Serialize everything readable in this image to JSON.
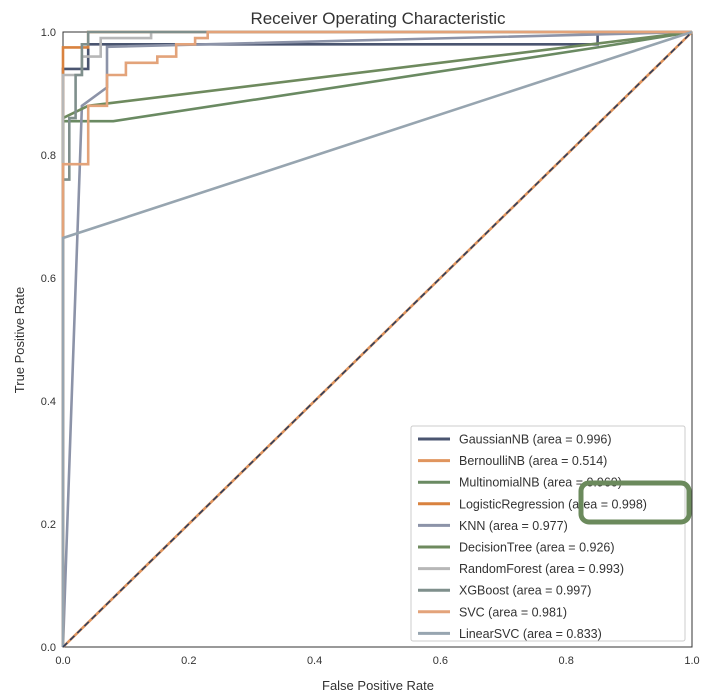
{
  "chart_data": {
    "type": "line",
    "title": "Receiver Operating Characteristic",
    "xlabel": "False Positive Rate",
    "ylabel": "True Positive Rate",
    "xlim": [
      0,
      1
    ],
    "ylim": [
      0,
      1
    ],
    "xticks": [
      "0.0",
      "0.2",
      "0.4",
      "0.6",
      "0.8",
      "1.0"
    ],
    "yticks": [
      "0.0",
      "0.2",
      "0.4",
      "0.6",
      "0.8",
      "1.0"
    ],
    "grid": false,
    "legend_position": "lower-right",
    "diagonal": {
      "x": [
        0,
        1
      ],
      "y": [
        0,
        1
      ],
      "color": "#2f3e5c",
      "style": "dashed"
    },
    "highlight": {
      "series": "LogisticRegression",
      "text": "(area = 0.998)",
      "color": "#6b8a5c"
    },
    "series": [
      {
        "name": "GaussianNB",
        "label": "GaussianNB (area = 0.996)",
        "color": "#4a5570",
        "x": [
          0,
          0,
          0.04,
          0.04,
          0.85,
          0.85,
          1
        ],
        "y": [
          0,
          0.94,
          0.94,
          0.98,
          0.98,
          1,
          1
        ]
      },
      {
        "name": "BernoulliNB",
        "label": "BernoulliNB (area = 0.514)",
        "color": "#e0955e",
        "x": [
          0,
          0.97,
          1
        ],
        "y": [
          0,
          0.97,
          1
        ]
      },
      {
        "name": "MultinomialNB",
        "label": "MultinomialNB (area = 0.960)",
        "color": "#6a8a62",
        "x": [
          0,
          0,
          0.08,
          0.85,
          1
        ],
        "y": [
          0,
          0.855,
          0.855,
          0.975,
          1
        ]
      },
      {
        "name": "LogisticRegression",
        "label": "LogisticRegression (area = 0.998)",
        "color": "#d9823f",
        "x": [
          0,
          0,
          0.04,
          0.04,
          1
        ],
        "y": [
          0,
          0.975,
          0.975,
          1,
          1
        ]
      },
      {
        "name": "KNN",
        "label": "KNN (area = 0.977)",
        "color": "#8c93a8",
        "x": [
          0,
          0.03,
          0.07,
          0.07,
          1
        ],
        "y": [
          0,
          0.88,
          0.91,
          0.976,
          1
        ]
      },
      {
        "name": "DecisionTree",
        "label": "DecisionTree (area = 0.926)",
        "color": "#6e8a5e",
        "x": [
          0,
          0.0,
          0.04,
          1
        ],
        "y": [
          0,
          0.86,
          0.88,
          1
        ]
      },
      {
        "name": "RandomForest",
        "label": "RandomForest (area = 0.993)",
        "color": "#b7b7b7",
        "x": [
          0,
          0,
          0.03,
          0.03,
          0.06,
          0.06,
          0.14,
          0.14,
          1
        ],
        "y": [
          0,
          0.93,
          0.93,
          0.96,
          0.96,
          0.99,
          0.99,
          1,
          1
        ]
      },
      {
        "name": "XGBoost",
        "label": "XGBoost (area = 0.997)",
        "color": "#7f8f8c",
        "x": [
          0,
          0,
          0.01,
          0.01,
          0.02,
          0.02,
          0.03,
          0.03,
          0.04,
          0.04,
          1
        ],
        "y": [
          0,
          0.76,
          0.76,
          0.86,
          0.86,
          0.93,
          0.93,
          0.98,
          0.98,
          1,
          1
        ]
      },
      {
        "name": "SVC",
        "label": "SVC (area = 0.981)",
        "color": "#e3a37a",
        "x": [
          0,
          0,
          0.04,
          0.04,
          0.07,
          0.07,
          0.1,
          0.1,
          0.15,
          0.15,
          0.18,
          0.18,
          0.21,
          0.21,
          0.23,
          0.23,
          1
        ],
        "y": [
          0,
          0.785,
          0.785,
          0.88,
          0.88,
          0.93,
          0.93,
          0.95,
          0.95,
          0.96,
          0.96,
          0.98,
          0.98,
          0.99,
          0.99,
          1,
          1
        ]
      },
      {
        "name": "LinearSVC",
        "label": "LinearSVC (area = 0.833)",
        "color": "#97a5b0",
        "x": [
          0,
          0,
          1
        ],
        "y": [
          0,
          0.665,
          1
        ]
      }
    ]
  }
}
